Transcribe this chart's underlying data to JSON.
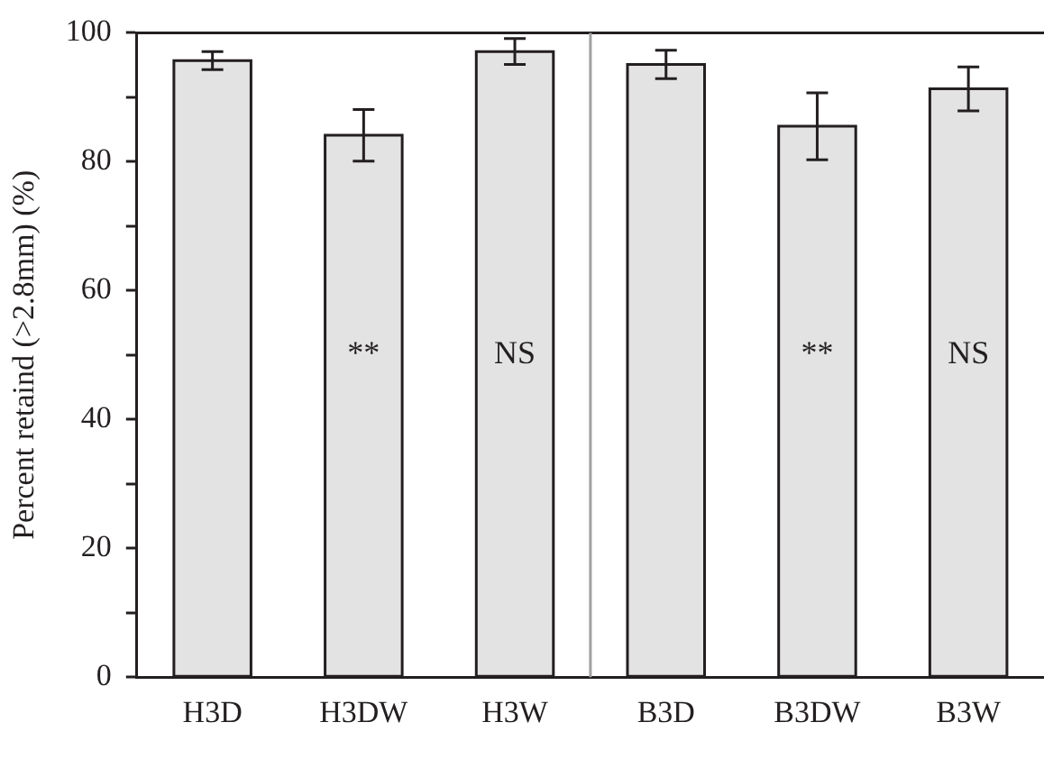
{
  "chart_data": {
    "type": "bar",
    "ylabel": "Percent retaind (>2.8mm) (%)",
    "categories": [
      "H3D",
      "H3DW",
      "H3W",
      "B3D",
      "B3DW",
      "B3W"
    ],
    "values": [
      95.7,
      84.1,
      97.1,
      95.1,
      85.5,
      91.3
    ],
    "errors": [
      1.4,
      4,
      2,
      2.2,
      5.2,
      3.4
    ],
    "color": "#e3e3e3",
    "ylim": [
      0,
      100
    ],
    "yticks": [
      0,
      {
        "value": 10,
        "label": null
      },
      20,
      {
        "value": 30,
        "label": null
      },
      40,
      {
        "value": 50,
        "label": null
      },
      60,
      {
        "value": 70,
        "label": null
      },
      80,
      {
        "value": 90,
        "label": null
      },
      100
    ],
    "grid": false,
    "legend": false,
    "annotations": [
      "**",
      "NS",
      "**",
      "NS"
    ]
  }
}
